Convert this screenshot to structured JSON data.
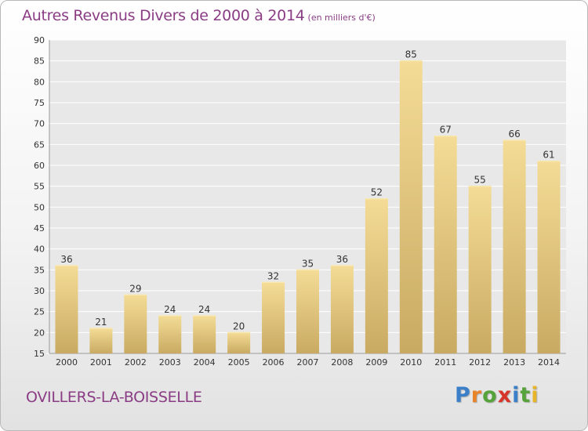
{
  "title": "Autres Revenus Divers de 2000 à 2014",
  "unit_note": "(en milliers d'€)",
  "location": "OVILLERS-LA-BOISSELLE",
  "brand": {
    "letters": [
      "P",
      "r",
      "o",
      "x",
      "i",
      "t",
      "i"
    ],
    "colors": [
      "#3a7fc8",
      "#e8832a",
      "#55a33a",
      "#d8352a",
      "#3a7fc8",
      "#55a33a",
      "#e8b52a"
    ]
  },
  "colors": {
    "bar_top": "#f4dc96",
    "bar_bottom": "#c9aa62",
    "title": "#8a3d84"
  },
  "chart_data": {
    "type": "bar",
    "title": "Autres Revenus Divers de 2000 à 2014",
    "categories": [
      "2000",
      "2001",
      "2002",
      "2003",
      "2004",
      "2005",
      "2006",
      "2007",
      "2008",
      "2009",
      "2010",
      "2011",
      "2012",
      "2013",
      "2014"
    ],
    "values": [
      36,
      21,
      29,
      24,
      24,
      20,
      32,
      35,
      36,
      52,
      85,
      67,
      55,
      66,
      61
    ],
    "ylim": [
      15,
      90
    ],
    "yticks": [
      15,
      20,
      25,
      30,
      35,
      40,
      45,
      50,
      55,
      60,
      65,
      70,
      75,
      80,
      85,
      90
    ],
    "grid": true,
    "data_labels": true
  }
}
